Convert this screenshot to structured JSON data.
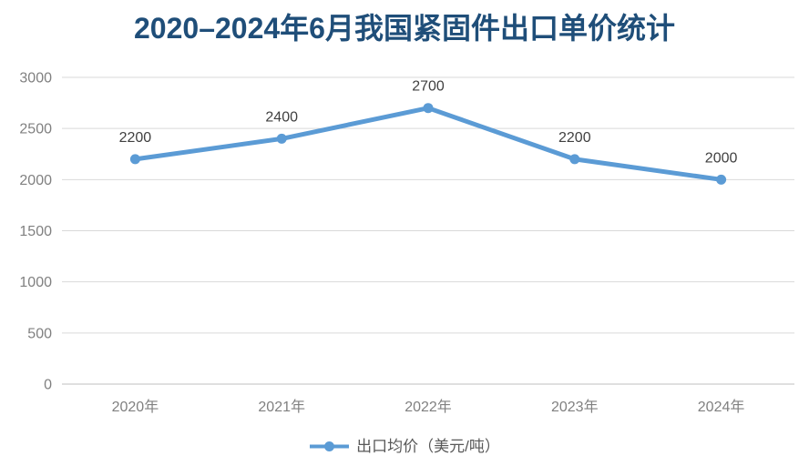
{
  "title": "2020–2024年6月我国紧固件出口单价统计",
  "chart_data": {
    "type": "line",
    "title": "2020–2024年6月我国紧固件出口单价统计",
    "categories": [
      "2020年",
      "2021年",
      "2022年",
      "2023年",
      "2024年"
    ],
    "series": [
      {
        "name": "出口均价（美元/吨）",
        "values": [
          2200,
          2400,
          2700,
          2200,
          2000
        ]
      }
    ],
    "xlabel": "",
    "ylabel": "",
    "ylim": [
      0,
      3000
    ],
    "ytick_step": 500,
    "ytick_labels": [
      "0",
      "500",
      "1000",
      "1500",
      "2000",
      "2500",
      "3000"
    ],
    "grid": true,
    "data_labels_shown": true,
    "legend_position": "bottom",
    "marker": "circle"
  },
  "legend": {
    "label": "出口均价（美元/吨）",
    "marker_icon": "line-dot-marker-icon"
  },
  "colors": {
    "background": "#FFFFFF",
    "series_line": "#5B9BD5",
    "title": "#1F4E79",
    "data_label": "#404040",
    "axis_label": "#808080",
    "gridline": "#D9D9D9",
    "axis_line": "#BFBFBF",
    "legend_text": "#595959"
  }
}
